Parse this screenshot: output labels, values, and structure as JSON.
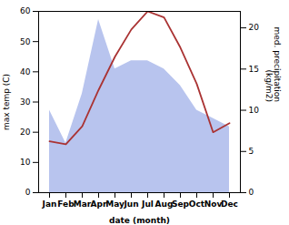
{
  "chart_data": {
    "type": "line",
    "xlabel": "date (month)",
    "ylabel": "max temp (C)",
    "y2label": "med. precipitation\n(kg/m2)",
    "categories": [
      "Jan",
      "Feb",
      "Mar",
      "Apr",
      "May",
      "Jun",
      "Jul",
      "Aug",
      "Sep",
      "Oct",
      "Nov",
      "Dec"
    ],
    "series": [
      {
        "type": "area",
        "axis": "y2",
        "color": "#b8c4ee",
        "values": [
          10,
          6,
          12,
          21,
          15,
          16,
          16,
          15,
          13,
          10,
          9,
          8
        ]
      },
      {
        "type": "line",
        "color": "#aa3333",
        "values": [
          17,
          16,
          22,
          34,
          45,
          54,
          60,
          58,
          48,
          36,
          20,
          23
        ]
      }
    ],
    "ylim": [
      0,
      60
    ],
    "yticks": [
      0,
      10,
      20,
      30,
      40,
      50,
      60
    ],
    "y2lim": [
      0,
      22
    ],
    "y2ticks": [
      0,
      5,
      10,
      15,
      20
    ]
  }
}
